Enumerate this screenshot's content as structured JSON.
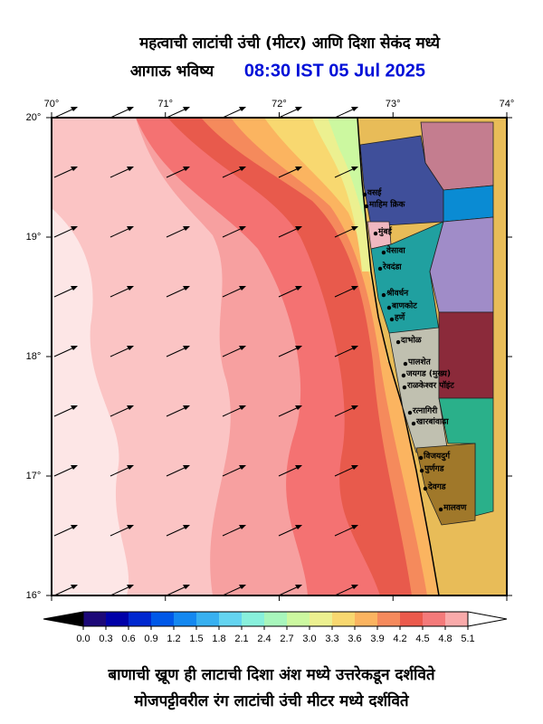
{
  "header": {
    "title_line1": "महत्वाची लाटांची उंची (मीटर) आणि दिशा सेकंद मध्ये",
    "title_line2": "आगाऊ भविष्य",
    "datetime": "08:30 IST 05 Jul 2025"
  },
  "map": {
    "lonlim": [
      70,
      74
    ],
    "latlim": [
      16,
      20
    ],
    "lon_ticks": [
      {
        "value": 70,
        "label": "70°"
      },
      {
        "value": 71,
        "label": "71°"
      },
      {
        "value": 72,
        "label": "72°"
      },
      {
        "value": 73,
        "label": "73°"
      },
      {
        "value": 74,
        "label": "74°"
      }
    ],
    "lat_ticks": [
      {
        "value": 20,
        "label": "20°"
      },
      {
        "value": 19,
        "label": "19°"
      },
      {
        "value": 18,
        "label": "18°"
      },
      {
        "value": 17,
        "label": "17°"
      },
      {
        "value": 16,
        "label": "16°"
      }
    ],
    "places": [
      {
        "name": "वसई",
        "lon": 72.751,
        "lat": 19.356
      },
      {
        "name": "माहिम क्रिक",
        "lon": 72.767,
        "lat": 19.258
      },
      {
        "name": "मुंबई",
        "lon": 72.847,
        "lat": 19.03
      },
      {
        "name": "वेसावा",
        "lon": 72.918,
        "lat": 18.871
      },
      {
        "name": "रेवदंडा",
        "lon": 72.887,
        "lat": 18.735
      },
      {
        "name": "श्रीवर्धन",
        "lon": 72.918,
        "lat": 18.515
      },
      {
        "name": "बाणकोट",
        "lon": 72.966,
        "lat": 18.409
      },
      {
        "name": "हर्णे",
        "lon": 72.99,
        "lat": 18.311
      },
      {
        "name": "दाभोळ",
        "lon": 73.046,
        "lat": 18.121
      },
      {
        "name": "पालशेत",
        "lon": 73.109,
        "lat": 17.939
      },
      {
        "name": "जयगड (मुख्य)",
        "lon": 73.093,
        "lat": 17.841
      },
      {
        "name": "राळकेश्वर पॉइंट",
        "lon": 73.101,
        "lat": 17.742
      },
      {
        "name": "रत्नागिरी",
        "lon": 73.149,
        "lat": 17.53
      },
      {
        "name": "खारबांवाढा",
        "lon": 73.181,
        "lat": 17.439
      },
      {
        "name": "विजयदुर्ग",
        "lon": 73.245,
        "lat": 17.152
      },
      {
        "name": "पुर्णगड",
        "lon": 73.253,
        "lat": 17.045
      },
      {
        "name": "देवगड",
        "lon": 73.284,
        "lat": 16.894
      },
      {
        "name": "मालवण",
        "lon": 73.42,
        "lat": 16.72
      }
    ]
  },
  "colorbar": {
    "lim": [
      0,
      5.1
    ],
    "ticks": [
      {
        "value": 0,
        "label": "0.0"
      },
      0.3,
      0.6,
      0.9,
      1.2,
      1.5,
      1.8,
      2.1,
      2.4,
      2.7,
      {
        "value": 3,
        "label": "3.0"
      },
      3.3,
      3.6,
      3.9,
      4.2,
      4.5,
      4.8,
      5.1
    ],
    "colors": [
      "#1c0878",
      "#0000a8",
      "#0028d0",
      "#0058e8",
      "#1488f0",
      "#38b0f0",
      "#64d4f0",
      "#88f0dc",
      "#a8f6bc",
      "#ccf8a0",
      "#ecf090",
      "#f8d870",
      "#fbb460",
      "#f58a5c",
      "#eb5a4c",
      "#f47a7a",
      "#f9aaaa",
      "#fccccc",
      "#fde8e8"
    ]
  },
  "footer": {
    "line1": "बाणाची ख्रूण ही लाटाची दिशा अंश मध्ये उत्तरेकडून दर्शविते",
    "line2": "मोजपट्टीवरील रंग लाटांची उंची मीटर मध्ये दर्शविते"
  }
}
